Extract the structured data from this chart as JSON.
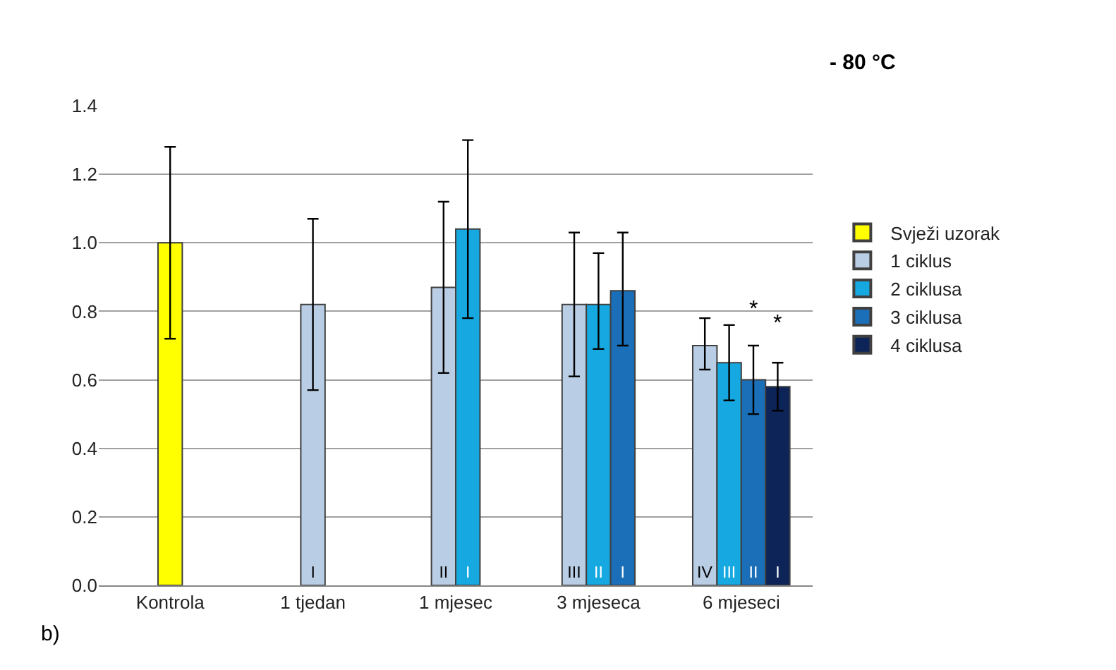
{
  "chart_data": {
    "type": "bar",
    "categories": [
      "Kontrola",
      "1 tjedan",
      "1 mjesec",
      "3 mjeseca",
      "6 mjeseci"
    ],
    "series": [
      {
        "name": "Svježi uzorak",
        "color": "#ffff00",
        "values": [
          1.0,
          null,
          null,
          null,
          null
        ],
        "errors": [
          [
            0.72,
            1.28
          ],
          null,
          null,
          null,
          null
        ],
        "value_labels": [
          null,
          null,
          null,
          null,
          null
        ]
      },
      {
        "name": "1 ciklus",
        "color": "#b9cde5",
        "values": [
          null,
          0.82,
          0.87,
          0.82,
          0.7
        ],
        "errors": [
          null,
          [
            0.57,
            1.07
          ],
          [
            0.62,
            1.12
          ],
          [
            0.61,
            1.03
          ],
          [
            0.63,
            0.78
          ]
        ],
        "value_labels": [
          null,
          "I",
          "II",
          "III",
          "IV"
        ]
      },
      {
        "name": "2 ciklusa",
        "color": "#16a9e1",
        "values": [
          null,
          null,
          1.04,
          0.82,
          0.65
        ],
        "errors": [
          null,
          null,
          [
            0.78,
            1.3
          ],
          [
            0.69,
            0.97
          ],
          [
            0.54,
            0.76
          ]
        ],
        "value_labels": [
          null,
          null,
          "I",
          "II",
          "III"
        ]
      },
      {
        "name": "3 ciklusa",
        "color": "#1a6fb8",
        "values": [
          null,
          null,
          null,
          0.86,
          0.6
        ],
        "errors": [
          null,
          null,
          null,
          [
            0.7,
            1.03
          ],
          [
            0.5,
            0.7
          ]
        ],
        "value_labels": [
          null,
          null,
          null,
          "I",
          "II"
        ]
      },
      {
        "name": "4 ciklusa",
        "color": "#0c2458",
        "values": [
          null,
          null,
          null,
          null,
          0.58
        ],
        "errors": [
          null,
          null,
          null,
          null,
          [
            0.51,
            0.65
          ]
        ],
        "value_labels": [
          null,
          null,
          null,
          null,
          "I"
        ]
      }
    ],
    "ylim": [
      0,
      1.4
    ],
    "yticks": [
      {
        "value": 0,
        "label": "0.0"
      },
      {
        "value": 0.2,
        "label": "0.2"
      },
      {
        "value": 0.4,
        "label": "0.4"
      },
      {
        "value": 0.6,
        "label": "0.6"
      },
      {
        "value": 0.8,
        "label": "0.8"
      },
      {
        "value": 1.0,
        "label": "1.0"
      },
      {
        "value": 1.2,
        "label": "1.2"
      },
      {
        "value": 1.4,
        "label": "1.4"
      }
    ],
    "grid": "y",
    "legend": "right",
    "annotations": [
      "- 80 °C",
      "b)",
      "*",
      "*"
    ]
  }
}
